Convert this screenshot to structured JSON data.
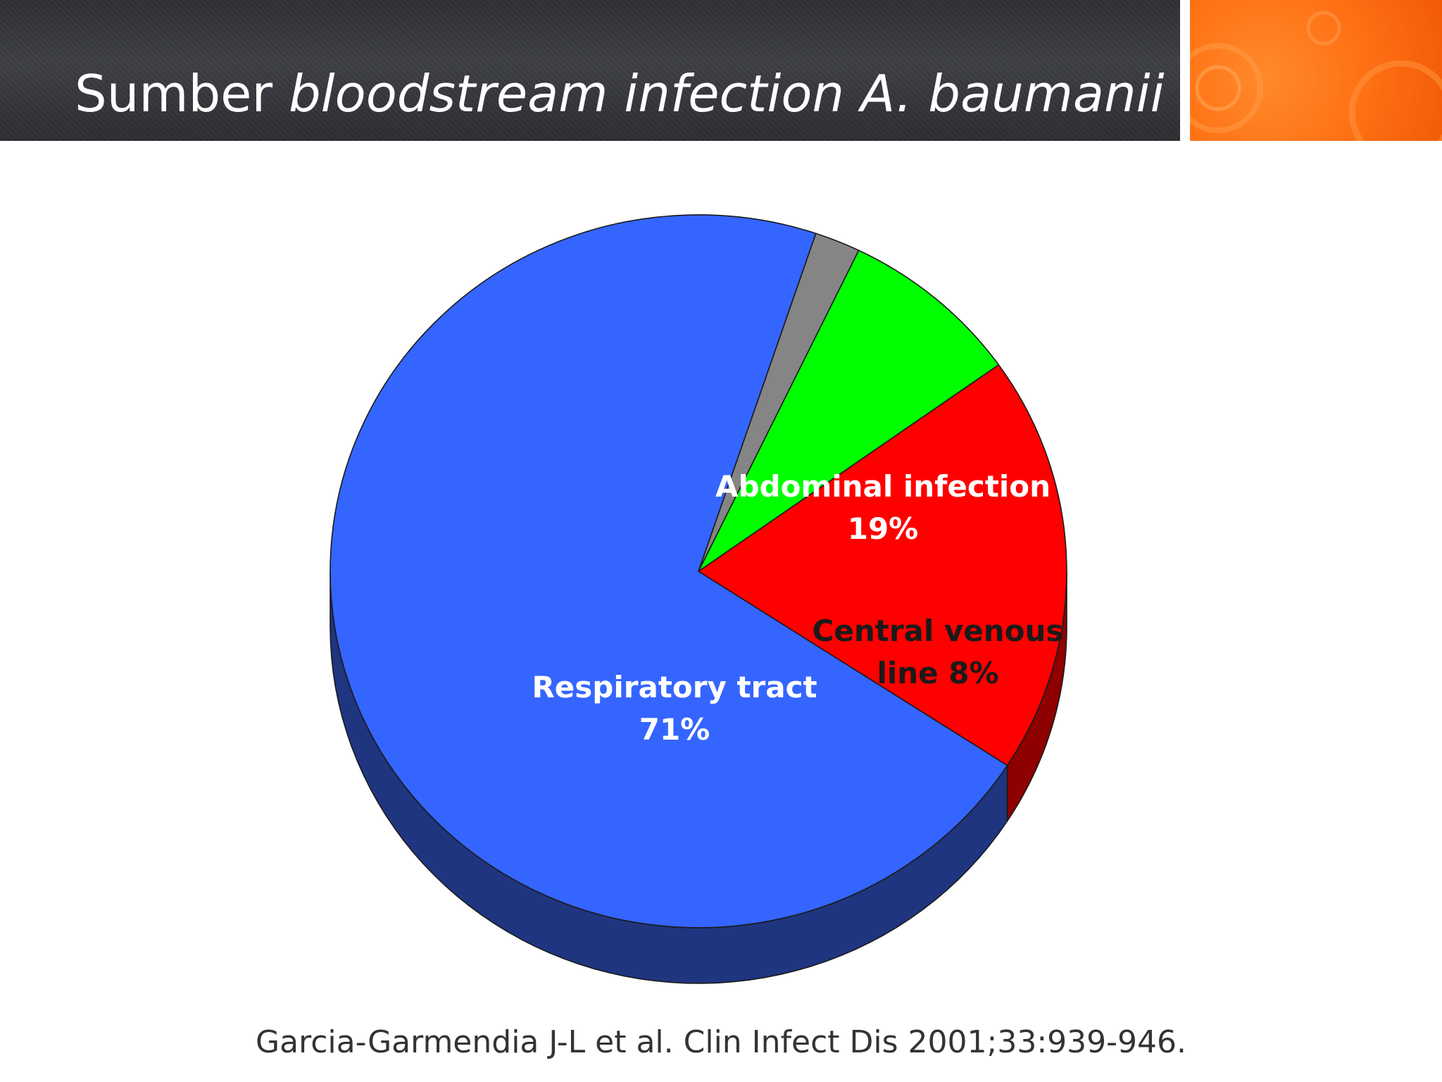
{
  "slide": {
    "title_prefix": "Sumber ",
    "title_italic": "bloodstream infection A. baumanii",
    "citation": "Garcia-Garmendia J-L et al. Clin Infect Dis 2001;33:939-946."
  },
  "colors": {
    "header_bg": "#35363b",
    "accent_orange": "#ff7417"
  },
  "chart_data": {
    "type": "pie",
    "style": "3d",
    "title": "",
    "legend": "none",
    "slices": [
      {
        "label": "Respiratory tract",
        "value_text": "71%",
        "value": 71,
        "color": "#3565ff",
        "side_color": "#1f3580",
        "text_color": "#ffffff"
      },
      {
        "label": "Abdominal infection",
        "value_text": "19%",
        "value": 19,
        "color": "#ff0000",
        "side_color": "#8f0000",
        "text_color": "#ffffff"
      },
      {
        "label": "Central venous line",
        "value_text": "8%",
        "value": 8,
        "color": "#00ff00",
        "side_color": "#008000",
        "text_color": "#1a1a1a"
      },
      {
        "label": "",
        "value_text": "",
        "value": 2,
        "color": "#858585",
        "side_color": "#444448",
        "text_color": "#1a1a1a"
      }
    ]
  }
}
